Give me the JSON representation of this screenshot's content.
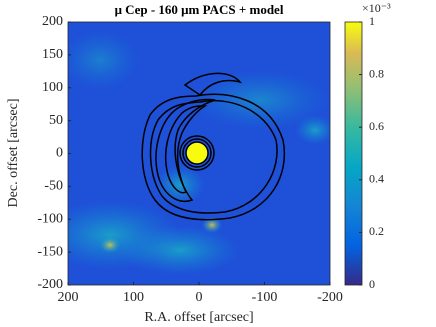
{
  "chart_data": {
    "type": "heatmap",
    "title": "μ Cep - 160 μm PACS + model",
    "x_label": "R.A. offset [arcsec]",
    "y_label": "Dec. offset [arcsec]",
    "xlim": [
      200,
      -200
    ],
    "xticks": [
      200,
      100,
      0,
      -100,
      -200
    ],
    "ylim": [
      -200,
      200
    ],
    "yticks": [
      -200,
      -150,
      -100,
      -50,
      0,
      50,
      100,
      150,
      200
    ],
    "colorbar": {
      "clim": [
        0,
        1
      ],
      "ticks": [
        0,
        0.2,
        0.4,
        0.6,
        0.8,
        1
      ],
      "exponent_label": "×10⁻³",
      "colormap": "parula"
    }
  }
}
